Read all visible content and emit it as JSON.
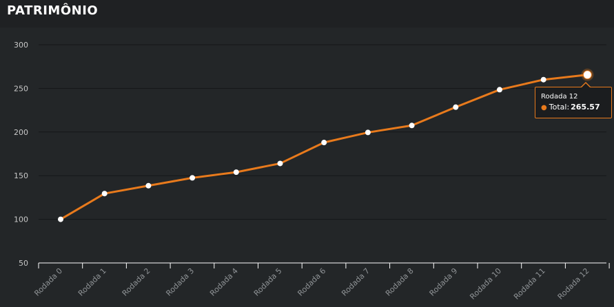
{
  "header": {
    "title": "PATRIMÔNIO"
  },
  "colors": {
    "series": "#e87a1c",
    "background": "#232628",
    "grid": "#141618",
    "axis": "#ffffff"
  },
  "chart_data": {
    "type": "line",
    "categories": [
      "Rodada 0",
      "Rodada 1",
      "Rodada 2",
      "Rodada 3",
      "Rodada 4",
      "Rodada 5",
      "Rodada 6",
      "Rodada 7",
      "Rodada 8",
      "Rodada 9",
      "Rodada 10",
      "Rodada 11",
      "Rodada 12"
    ],
    "series": [
      {
        "name": "Total",
        "values": [
          100,
          129.5,
          138.5,
          147.5,
          154,
          164,
          188,
          199.5,
          207.5,
          228.5,
          248.5,
          260,
          265.57
        ]
      }
    ],
    "yticks": [
      50,
      100,
      150,
      200,
      250,
      300
    ],
    "ylim": [
      50,
      300
    ],
    "grid": true
  },
  "tooltip": {
    "header": "Rodada 12",
    "series": "Total",
    "value": "265.57",
    "index": 12
  }
}
